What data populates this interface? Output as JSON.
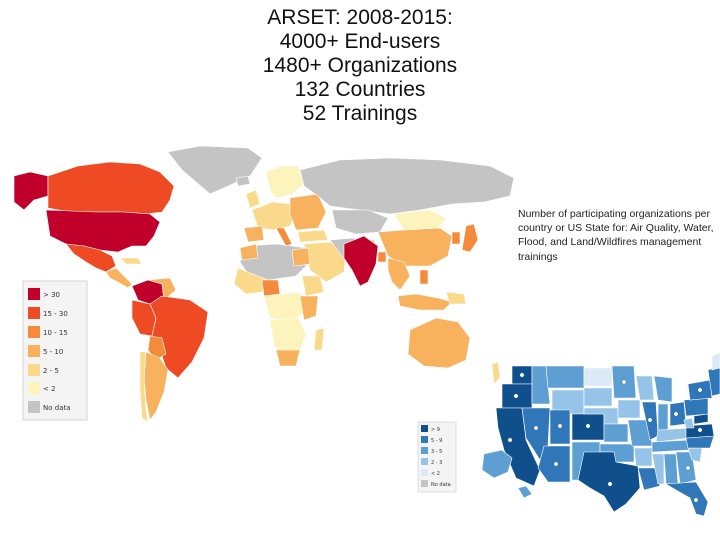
{
  "title": {
    "line1": "ARSET: 2008-2015:",
    "line2": "4000+ End-users",
    "line3": "1480+ Organizations",
    "line4": "132 Countries",
    "line5": "52 Trainings"
  },
  "description": "Number of participating organizations per country or US State for: Air Quality, Water, Flood, and Land/Wildfires management trainings",
  "world_legend": [
    {
      "label": "> 30",
      "color": "#c0002a"
    },
    {
      "label": "15 - 30",
      "color": "#ee4a24"
    },
    {
      "label": "10 - 15",
      "color": "#f48a3a"
    },
    {
      "label": "5 - 10",
      "color": "#f8b15c"
    },
    {
      "label": "2 - 5",
      "color": "#fbd98a"
    },
    {
      "label": "< 2",
      "color": "#fdf3bd"
    },
    {
      "label": "No data",
      "color": "#c4c4c4"
    }
  ],
  "us_legend": [
    {
      "label": "> 9",
      "color": "#0f4f8c"
    },
    {
      "label": "5 - 9",
      "color": "#2f77b8"
    },
    {
      "label": "3 - 5",
      "color": "#5e9fd3"
    },
    {
      "label": "2 - 3",
      "color": "#96c4e8"
    },
    {
      "label": "< 2",
      "color": "#dce9f6"
    },
    {
      "label": "No data",
      "color": "#c4c4c4"
    }
  ]
}
